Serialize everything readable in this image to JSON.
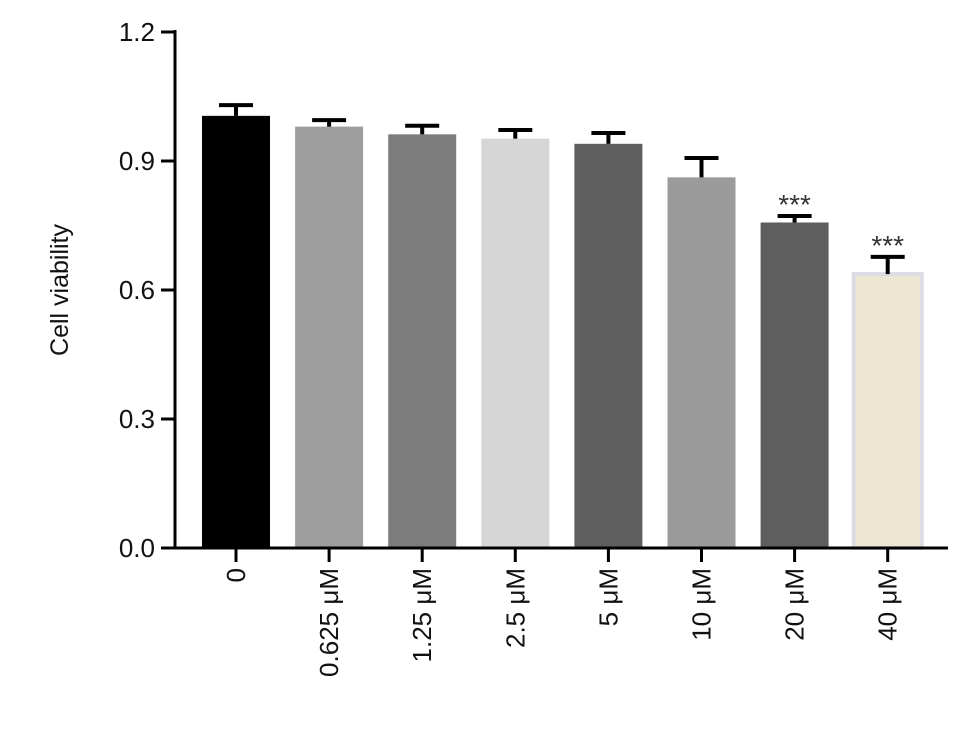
{
  "chart_data": {
    "type": "bar",
    "title": "",
    "xlabel": "",
    "ylabel": "Cell viability",
    "ylim": [
      0,
      1.2
    ],
    "yticks": [
      "0.0",
      "0.3",
      "0.6",
      "0.9",
      "1.2"
    ],
    "categories": [
      "0",
      "0.625 μM",
      "1.25 μM",
      "2.5 μM",
      "5 μM",
      "10 μM",
      "20 μM",
      "40 μM"
    ],
    "values": [
      1.005,
      0.98,
      0.962,
      0.952,
      0.94,
      0.862,
      0.757,
      0.637
    ],
    "errors": [
      0.025,
      0.015,
      0.02,
      0.02,
      0.025,
      0.045,
      0.015,
      0.04
    ],
    "significance": [
      "",
      "",
      "",
      "",
      "",
      "",
      "***",
      "***"
    ],
    "colors": [
      "#000000",
      "#9e9e9e",
      "#7c7c7c",
      "#d6d6d6",
      "#5f5f5f",
      "#9b9b9b",
      "#5e5e5e",
      "#ede7d2"
    ],
    "outline_colors": [
      "#000000",
      "#9e9e9e",
      "#7c7c7c",
      "#d6d6d6",
      "#5f5f5f",
      "#9b9b9b",
      "#5e5e5e",
      "#dcdde4"
    ],
    "grid": false,
    "legend": "none"
  }
}
